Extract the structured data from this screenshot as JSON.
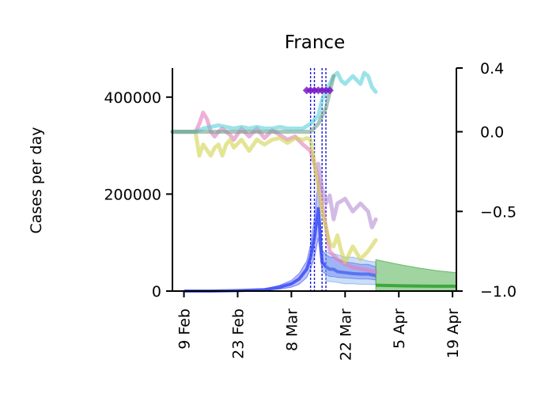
{
  "chart_data": {
    "type": "line",
    "title": "France",
    "ylabel": "Cases per day",
    "ylim": [
      0,
      460000
    ],
    "y_ticks": [
      0,
      200000,
      400000
    ],
    "y_tick_labels": [
      "0",
      "200000",
      "400000"
    ],
    "y2lim": [
      -1.0,
      0.4
    ],
    "y2_ticks": [
      -1.0,
      -0.5,
      0.0,
      0.4
    ],
    "y2_tick_labels": [
      "−1.0",
      "−0.5",
      "0.0",
      "0.4"
    ],
    "x_range": [
      "2020-02-06",
      "2020-04-20"
    ],
    "x_ticks": [
      "2020-02-09",
      "2020-02-23",
      "2020-03-08",
      "2020-03-22",
      "2020-04-05",
      "2020-04-19"
    ],
    "x_tick_labels": [
      "9 Feb",
      "23 Feb",
      "8 Mar",
      "22 Mar",
      "5 Apr",
      "19 Apr"
    ],
    "grid": false,
    "vertical_markers": [
      "2020-03-13",
      "2020-03-14",
      "2020-03-16",
      "2020-03-17"
    ],
    "series": [
      {
        "color": "#3b4cf5",
        "axis": "left",
        "style": "line-band",
        "x": [
          "2020-02-09",
          "2020-02-16",
          "2020-02-23",
          "2020-03-01",
          "2020-03-05",
          "2020-03-08",
          "2020-03-10",
          "2020-03-12",
          "2020-03-13",
          "2020-03-14",
          "2020-03-15",
          "2020-03-16",
          "2020-03-17",
          "2020-03-18",
          "2020-03-19",
          "2020-03-20",
          "2020-03-22",
          "2020-03-24",
          "2020-03-26",
          "2020-03-28",
          "2020-03-30"
        ],
        "y": [
          0,
          0,
          1000,
          3000,
          8000,
          15000,
          25000,
          45000,
          70000,
          110000,
          170000,
          60000,
          50000,
          45000,
          45000,
          40000,
          38000,
          36000,
          35000,
          35000,
          32000
        ],
        "y_low": [
          0,
          0,
          500,
          1500,
          4000,
          8000,
          14000,
          28000,
          45000,
          70000,
          110000,
          40000,
          35000,
          30000,
          30000,
          28000,
          27000,
          26000,
          25000,
          25000,
          23000
        ],
        "y_high": [
          0,
          0,
          1500,
          4500,
          12000,
          22000,
          36000,
          62000,
          95000,
          150000,
          230000,
          85000,
          75000,
          70000,
          70000,
          65000,
          60000,
          58000,
          55000,
          55000,
          50000
        ]
      },
      {
        "color": "#6c9fe6",
        "axis": "left",
        "style": "band",
        "x": [
          "2020-03-17",
          "2020-03-18",
          "2020-03-20",
          "2020-03-22",
          "2020-03-24",
          "2020-03-26",
          "2020-03-28",
          "2020-03-30"
        ],
        "y_low": [
          20000,
          20000,
          18000,
          15000,
          15000,
          14000,
          14000,
          13000
        ],
        "y_high": [
          80000,
          78000,
          75000,
          70000,
          70000,
          66000,
          62000,
          60000
        ]
      },
      {
        "color": "#2ca02c",
        "axis": "left",
        "style": "band",
        "x": [
          "2020-03-30",
          "2020-04-05",
          "2020-04-10",
          "2020-04-15",
          "2020-04-20"
        ],
        "y": [
          12000,
          11000,
          10500,
          10000,
          10000
        ],
        "y_low": [
          1000,
          1000,
          1000,
          1000,
          1000
        ],
        "y_high": [
          65000,
          55000,
          48000,
          42000,
          38000
        ]
      },
      {
        "color": "#e17dbd",
        "axis": "right",
        "style": "line",
        "x": [
          "2020-02-06",
          "2020-02-12",
          "2020-02-13",
          "2020-02-14",
          "2020-02-15",
          "2020-02-16",
          "2020-02-17",
          "2020-02-18",
          "2020-02-19",
          "2020-02-20",
          "2020-02-21",
          "2020-02-22",
          "2020-02-24",
          "2020-02-26",
          "2020-02-28",
          "2020-03-01",
          "2020-03-03",
          "2020-03-05",
          "2020-03-07",
          "2020-03-09",
          "2020-03-11",
          "2020-03-12",
          "2020-03-13",
          "2020-03-14",
          "2020-03-15",
          "2020-03-16",
          "2020-03-17",
          "2020-03-18",
          "2020-03-20",
          "2020-03-22",
          "2020-03-24",
          "2020-03-26",
          "2020-03-28",
          "2020-03-30"
        ],
        "y": [
          0.0,
          0.0,
          0.05,
          0.12,
          0.08,
          0.0,
          -0.03,
          0.0,
          0.02,
          0.0,
          -0.02,
          -0.05,
          0.02,
          -0.03,
          0.02,
          -0.04,
          0.01,
          -0.02,
          -0.05,
          -0.03,
          -0.08,
          -0.1,
          -0.12,
          -0.2,
          -0.3,
          -0.45,
          -0.6,
          -0.75,
          -0.8,
          -0.83,
          -0.85,
          -0.86,
          -0.87,
          -0.88
        ]
      },
      {
        "color": "#d0d34e",
        "axis": "right",
        "style": "line",
        "x": [
          "2020-02-06",
          "2020-02-12",
          "2020-02-13",
          "2020-02-14",
          "2020-02-16",
          "2020-02-17",
          "2020-02-18",
          "2020-02-19",
          "2020-02-20",
          "2020-02-21",
          "2020-02-22",
          "2020-02-24",
          "2020-02-26",
          "2020-02-28",
          "2020-03-01",
          "2020-03-03",
          "2020-03-05",
          "2020-03-07",
          "2020-03-09",
          "2020-03-11",
          "2020-03-12",
          "2020-03-13",
          "2020-03-14",
          "2020-03-16",
          "2020-03-17",
          "2020-03-18",
          "2020-03-19",
          "2020-03-20",
          "2020-03-21",
          "2020-03-22",
          "2020-03-24",
          "2020-03-26",
          "2020-03-28",
          "2020-03-30"
        ],
        "y": [
          0.0,
          0.0,
          -0.15,
          -0.08,
          -0.15,
          -0.1,
          -0.08,
          -0.15,
          -0.08,
          -0.05,
          -0.1,
          -0.05,
          -0.12,
          -0.05,
          -0.08,
          -0.05,
          -0.04,
          -0.07,
          -0.04,
          -0.05,
          -0.04,
          -0.05,
          -0.2,
          -0.5,
          -0.6,
          -0.7,
          -0.72,
          -0.65,
          -0.75,
          -0.82,
          -0.72,
          -0.8,
          -0.75,
          -0.68
        ]
      },
      {
        "color": "#5ad0db",
        "axis": "right",
        "style": "line",
        "x": [
          "2020-02-06",
          "2020-02-12",
          "2020-02-14",
          "2020-02-16",
          "2020-02-18",
          "2020-02-20",
          "2020-02-22",
          "2020-02-24",
          "2020-02-26",
          "2020-02-28",
          "2020-03-01",
          "2020-03-03",
          "2020-03-05",
          "2020-03-07",
          "2020-03-09",
          "2020-03-11",
          "2020-03-13",
          "2020-03-15",
          "2020-03-16",
          "2020-03-17",
          "2020-03-18",
          "2020-03-19",
          "2020-03-20",
          "2020-03-21",
          "2020-03-22",
          "2020-03-24",
          "2020-03-26",
          "2020-03-27",
          "2020-03-28",
          "2020-03-29",
          "2020-03-30"
        ],
        "y": [
          0.0,
          0.0,
          0.02,
          0.03,
          0.04,
          0.03,
          0.02,
          0.03,
          0.02,
          0.03,
          0.02,
          0.02,
          0.03,
          0.02,
          0.02,
          0.02,
          0.05,
          0.1,
          0.2,
          0.25,
          0.3,
          0.35,
          0.37,
          0.32,
          0.3,
          0.35,
          0.3,
          0.37,
          0.35,
          0.28,
          0.25
        ]
      },
      {
        "color": "#b48ed2",
        "axis": "right",
        "style": "line",
        "x": [
          "2020-03-15",
          "2020-03-16",
          "2020-03-17",
          "2020-03-18",
          "2020-03-19",
          "2020-03-20",
          "2020-03-22",
          "2020-03-24",
          "2020-03-26",
          "2020-03-28",
          "2020-03-29",
          "2020-03-30"
        ],
        "y": [
          -0.2,
          -0.35,
          -0.45,
          -0.4,
          -0.55,
          -0.45,
          -0.42,
          -0.5,
          -0.45,
          -0.5,
          -0.6,
          -0.55
        ]
      },
      {
        "color": "#6fa08e",
        "axis": "right",
        "style": "line",
        "x": [
          "2020-02-06",
          "2020-03-11",
          "2020-03-13",
          "2020-03-15",
          "2020-03-17",
          "2020-03-18",
          "2020-03-19"
        ],
        "y": [
          0.0,
          0.0,
          0.0,
          0.05,
          0.15,
          0.25,
          0.35
        ]
      },
      {
        "color": "#7a17c9",
        "axis": "right",
        "style": "markers",
        "x": [
          "2020-03-12",
          "2020-03-13",
          "2020-03-14",
          "2020-03-15",
          "2020-03-16",
          "2020-03-17",
          "2020-03-18"
        ],
        "y": [
          0.26,
          0.26,
          0.26,
          0.26,
          0.26,
          0.26,
          0.26
        ]
      }
    ]
  }
}
